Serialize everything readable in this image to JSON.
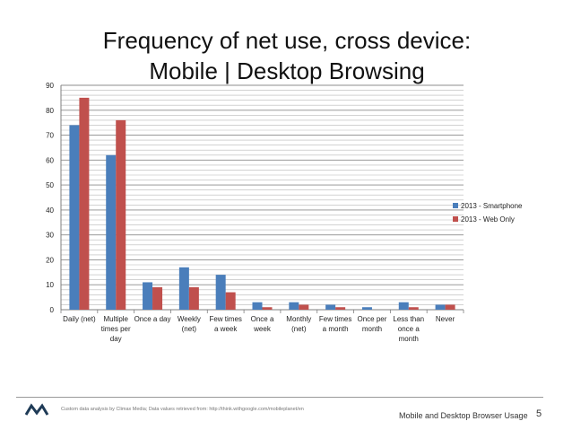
{
  "slide": {
    "title_line1": "Frequency of net use, cross device:",
    "title_line2": "Mobile | Desktop Browsing",
    "source": "Custom  data analysis by Climax Media; Data values retrieved from: http://think.withgoogle.com/mobileplanet/en",
    "footer_title": "Mobile and Desktop Browser Usage",
    "page_number": "5"
  },
  "chart_data": {
    "type": "bar",
    "title": "",
    "xlabel": "",
    "ylabel": "",
    "ylim": [
      0,
      90
    ],
    "yticks": [
      0,
      10,
      20,
      30,
      40,
      50,
      60,
      70,
      80,
      90
    ],
    "grid": true,
    "legend_position": "right",
    "categories": [
      [
        "Daily (net)"
      ],
      [
        "Multiple",
        "times per",
        "day"
      ],
      [
        "Once a day"
      ],
      [
        "Weekly",
        "(net)"
      ],
      [
        "Few times",
        "a week"
      ],
      [
        "Once a",
        "week"
      ],
      [
        "Monthly",
        "(net)"
      ],
      [
        "Few times",
        "a month"
      ],
      [
        "Once per",
        "month"
      ],
      [
        "Less than",
        "once a",
        "month"
      ],
      [
        "Never"
      ]
    ],
    "series": [
      {
        "name": "2013 - Smartphone",
        "color": "#4a7ebb",
        "values": [
          74,
          62,
          11,
          17,
          14,
          3,
          3,
          2,
          1,
          3,
          2
        ]
      },
      {
        "name": "2013 - Web Only",
        "color": "#c0504d",
        "values": [
          85,
          76,
          9,
          9,
          7,
          1,
          2,
          1,
          0,
          1,
          2
        ]
      }
    ]
  }
}
